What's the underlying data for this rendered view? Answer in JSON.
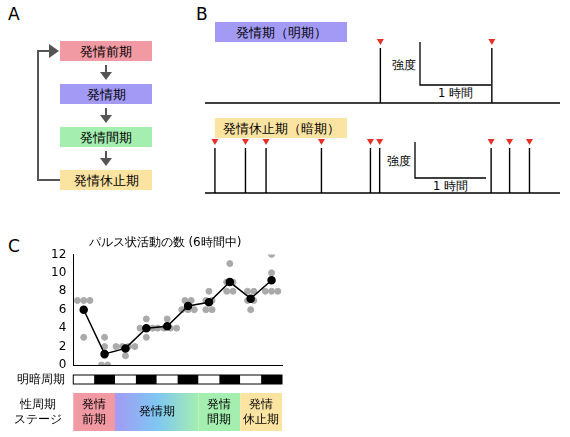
{
  "panel_labels": [
    "A",
    "B",
    "C"
  ],
  "cycle": {
    "stages": [
      {
        "label": "発情前期",
        "color": "#f19aa4"
      },
      {
        "label": "発情期",
        "color": "#a39af5"
      },
      {
        "label": "発情間期",
        "color": "#a4eeb0"
      },
      {
        "label": "発情休止期",
        "color": "#fbe3a2"
      }
    ]
  },
  "traces": {
    "xlim": [
      0,
      5
    ],
    "scale_bar": {
      "intensity_label": "強度",
      "time_label": "1 時間",
      "hours": 1
    },
    "series": [
      {
        "name": "発情期（明期）",
        "color": "#a39af5",
        "marker_color": "#e8302a",
        "peak_times": [
          2.47,
          4.04
        ]
      },
      {
        "name": "発情休止期（暗期）",
        "color": "#fbe3a2",
        "marker_color": "#e8302a",
        "peak_times": [
          0.14,
          0.57,
          0.86,
          1.64,
          2.33,
          2.46,
          4.03,
          4.29,
          4.57
        ]
      }
    ]
  },
  "chart_data": {
    "type": "line",
    "title": "パルス状活動の数 (6時間中)",
    "x": [
      0,
      1,
      2,
      3,
      4,
      5,
      6,
      7,
      8,
      9
    ],
    "xlim": [
      -0.5,
      9.5
    ],
    "ylim": [
      0,
      12
    ],
    "yticks": [
      0,
      2,
      4,
      6,
      8,
      10,
      12
    ],
    "grid": false,
    "tick_labels": "y",
    "series": [
      {
        "type": "scatter",
        "color": "#aaaaaa",
        "marker": "circle",
        "values": [
          [
            7,
            7,
            7,
            6,
            3
          ],
          [
            2,
            1,
            0,
            0,
            3
          ],
          [
            2,
            2,
            1,
            2,
            2
          ],
          [
            5,
            4,
            4,
            3,
            4
          ],
          [
            5,
            4,
            4,
            4,
            4
          ],
          [
            7,
            7,
            6,
            6,
            6
          ],
          [
            8,
            7,
            7,
            6,
            6
          ],
          [
            11,
            9,
            9,
            8,
            8
          ],
          [
            8,
            8,
            7,
            6,
            7
          ],
          [
            12,
            10,
            8,
            8,
            8
          ]
        ]
      },
      {
        "type": "line",
        "color": "#000000",
        "marker": "circle",
        "values": [
          6,
          1.2,
          1.8,
          4,
          4.2,
          6.4,
          6.8,
          9,
          7.2,
          9.2
        ]
      }
    ],
    "light_dark_label": "明暗周期",
    "dark": [
      false,
      true,
      false,
      true,
      false,
      true,
      false,
      true,
      false,
      true
    ],
    "stage_label": [
      "性周期",
      "ステージ"
    ],
    "stages": [
      {
        "label": [
          "発情",
          "前期"
        ],
        "start": -0.5,
        "end": 1.5,
        "color": "#f19aa4"
      },
      {
        "label": [
          "発情期"
        ],
        "start": 1.5,
        "end": 5.5,
        "colors": [
          "#a39af5",
          "#7fc6f2",
          "#a4eeb0"
        ]
      },
      {
        "label": [
          "発情",
          "間期"
        ],
        "start": 5.5,
        "end": 7.5,
        "color": "#a4eeb0"
      },
      {
        "label": [
          "発情",
          "休止期"
        ],
        "start": 7.5,
        "end": 9.5,
        "color": "#fbe3a2"
      }
    ]
  }
}
